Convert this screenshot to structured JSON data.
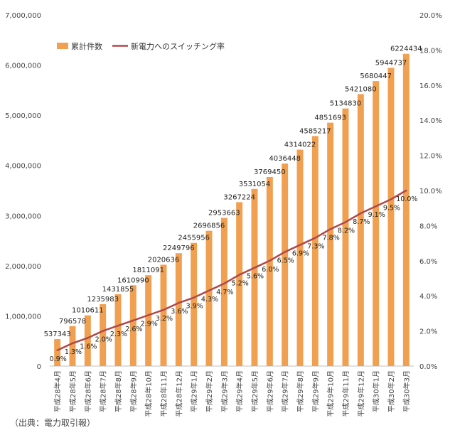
{
  "chart_data": {
    "type": "bar+line",
    "categories": [
      "平成28年4月",
      "平成28年5月",
      "平成28年6月",
      "平成28年7月",
      "平成28年8月",
      "平成28年9月",
      "平成28年10月",
      "平成28年11月",
      "平成28年12月",
      "平成29年1月",
      "平成29年2月",
      "平成29年3月",
      "平成29年4月",
      "平成29年5月",
      "平成29年6月",
      "平成29年7月",
      "平成29年8月",
      "平成29年9月",
      "平成29年10月",
      "平成29年11月",
      "平成29年12月",
      "平成30年1月",
      "平成30年2月",
      "平成30年3月"
    ],
    "series": [
      {
        "name": "累計件数",
        "type": "bar",
        "axis": "left",
        "color": "#F0A050",
        "values": [
          537343,
          796578,
          1010611,
          1235983,
          1431855,
          1610990,
          1811091,
          2020636,
          2249796,
          2455956,
          2696856,
          2953663,
          3267224,
          3531054,
          3769450,
          4036448,
          4314022,
          4585217,
          4851693,
          5134830,
          5421080,
          5680447,
          5944737,
          6224434
        ],
        "labels": [
          "537343",
          "796578",
          "1010611",
          "1235983",
          "1431855",
          "1610990",
          "1811091",
          "2020636",
          "2249796",
          "2455956",
          "2696856",
          "2953663",
          "3267224",
          "3531054",
          "3769450",
          "4036448",
          "4314022",
          "4585217",
          "4851693",
          "5134830",
          "5421080",
          "5680447",
          "5944737",
          "6224434"
        ]
      },
      {
        "name": "新電力へのスイッチング率",
        "type": "line",
        "axis": "right",
        "color": "#B04848",
        "values": [
          0.9,
          1.3,
          1.6,
          2.0,
          2.3,
          2.6,
          2.9,
          3.2,
          3.6,
          3.9,
          4.3,
          4.7,
          5.2,
          5.6,
          6.0,
          6.5,
          6.9,
          7.3,
          7.8,
          8.2,
          8.7,
          9.1,
          9.5,
          10.0
        ],
        "labels": [
          "0.9%",
          "1.3%",
          "1.6%",
          "2.0%",
          "2.3%",
          "2.6%",
          "2.9%",
          "3.2%",
          "3.6%",
          "3.9%",
          "4.3%",
          "4.7%",
          "5.2%",
          "5.6%",
          "6.0%",
          "6.5%",
          "6.9%",
          "7.3%",
          "7.8%",
          "8.2%",
          "8.7%",
          "9.1%",
          "9.5%",
          "10.0%"
        ]
      }
    ],
    "y_left": {
      "ylim": [
        0,
        7000000
      ],
      "ticks": [
        0,
        1000000,
        2000000,
        3000000,
        4000000,
        5000000,
        6000000,
        7000000
      ],
      "tick_labels": [
        "0",
        "1,000,000",
        "2,000,000",
        "3,000,000",
        "4,000,000",
        "5,000,000",
        "6,000,000",
        "7,000,000"
      ]
    },
    "y_right": {
      "ylim": [
        0,
        20
      ],
      "ticks": [
        0,
        2,
        4,
        6,
        8,
        10,
        12,
        14,
        16,
        18,
        20
      ],
      "tick_labels": [
        "0.0%",
        "2.0%",
        "4.0%",
        "6.0%",
        "8.0%",
        "10.0%",
        "12.0%",
        "14.0%",
        "16.0%",
        "18.0%",
        "20.0%"
      ]
    },
    "legend": {
      "position": "top-left"
    },
    "grid": false
  },
  "source_note": "（出典：電力取引報）"
}
